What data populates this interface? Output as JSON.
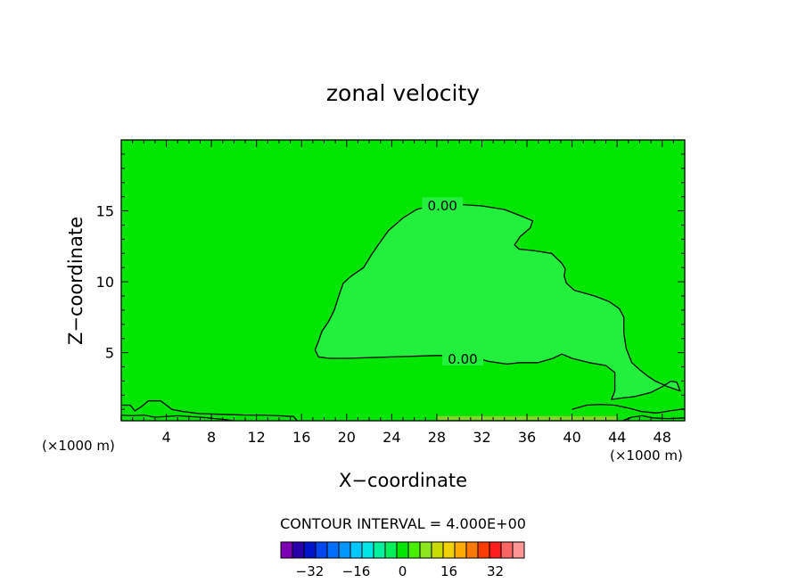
{
  "chart_data": {
    "type": "heatmap",
    "title": "zonal velocity",
    "xlabel": "X−coordinate",
    "ylabel": "Z−coordinate",
    "x_unit_left": "(×1000 m)",
    "x_unit_right": "(×1000 m)",
    "xlim": [
      0,
      50
    ],
    "ylim": [
      0.2,
      20
    ],
    "x_ticks": [
      4,
      8,
      12,
      16,
      20,
      24,
      28,
      32,
      36,
      40,
      44,
      48
    ],
    "y_ticks": [
      5,
      10,
      15
    ],
    "background_color": "#00e600",
    "region_color": "#22f03c",
    "contours": [
      {
        "level": "0.00",
        "label_positions": [
          [
            28.5,
            15.4
          ],
          [
            30.3,
            4.6
          ]
        ],
        "points": [
          [
            27.6,
            15.4
          ],
          [
            30,
            15.45
          ],
          [
            32,
            15.35
          ],
          [
            34,
            15.1
          ],
          [
            35.6,
            14.6
          ],
          [
            36.5,
            14.3
          ],
          [
            36.3,
            13.8
          ],
          [
            35.4,
            13.2
          ],
          [
            34.9,
            12.6
          ],
          [
            35.3,
            12.3
          ],
          [
            36.6,
            12.2
          ],
          [
            38.2,
            12.0
          ],
          [
            39.1,
            11.3
          ],
          [
            39.4,
            10.9
          ],
          [
            39.3,
            10.4
          ],
          [
            39.5,
            9.9
          ],
          [
            40.2,
            9.4
          ],
          [
            42,
            9.0
          ],
          [
            43.3,
            8.6
          ],
          [
            44.2,
            8.1
          ],
          [
            44.6,
            7.5
          ],
          [
            44.6,
            6.4
          ],
          [
            44.8,
            5.3
          ],
          [
            45.3,
            4.3
          ],
          [
            46,
            3.8
          ],
          [
            46.8,
            3.3
          ],
          [
            47.4,
            3.0
          ],
          [
            48.5,
            2.6
          ],
          [
            49.6,
            2.3
          ],
          [
            49.3,
            2.9
          ],
          [
            48.8,
            3.0
          ],
          [
            48,
            2.6
          ],
          [
            47,
            2.2
          ],
          [
            45.5,
            1.9
          ],
          [
            44.4,
            1.8
          ],
          [
            43.5,
            1.7
          ],
          [
            43.8,
            2.3
          ],
          [
            43.8,
            3.6
          ],
          [
            43,
            4.1
          ],
          [
            41.5,
            4.3
          ],
          [
            40,
            4.6
          ],
          [
            39.1,
            4.9
          ],
          [
            38.3,
            4.6
          ],
          [
            37,
            4.3
          ],
          [
            35.4,
            4.3
          ],
          [
            34.2,
            4.2
          ],
          [
            32.5,
            4.4
          ],
          [
            31,
            4.8
          ],
          [
            28,
            4.8
          ],
          [
            24,
            4.7
          ],
          [
            20,
            4.6
          ],
          [
            18.5,
            4.6
          ],
          [
            17.5,
            4.7
          ],
          [
            17.2,
            5.2
          ],
          [
            17.5,
            5.8
          ],
          [
            17.8,
            6.5
          ],
          [
            18.4,
            7.2
          ],
          [
            18.9,
            8.0
          ],
          [
            19.3,
            9.0
          ],
          [
            19.7,
            9.9
          ],
          [
            20.4,
            10.4
          ],
          [
            21.5,
            11.0
          ],
          [
            22.2,
            11.9
          ],
          [
            22.8,
            12.6
          ],
          [
            23.7,
            13.6
          ],
          [
            25,
            14.5
          ],
          [
            26.2,
            15.1
          ],
          [
            27.6,
            15.4
          ]
        ]
      },
      {
        "level": "",
        "points": [
          [
            0,
            1.3
          ],
          [
            0.8,
            1.3
          ],
          [
            1.2,
            0.9
          ],
          [
            1.8,
            1.2
          ],
          [
            2.4,
            1.6
          ],
          [
            3.5,
            1.6
          ],
          [
            4.5,
            1.0
          ],
          [
            5.5,
            0.85
          ],
          [
            7,
            0.7
          ],
          [
            9,
            0.65
          ],
          [
            11,
            0.6
          ],
          [
            12.5,
            0.6
          ],
          [
            14,
            0.55
          ],
          [
            15.3,
            0.5
          ],
          [
            15.6,
            0.2
          ]
        ]
      },
      {
        "level": "",
        "points": [
          [
            0,
            0.2
          ],
          [
            0,
            0.6
          ],
          [
            1,
            0.55
          ],
          [
            2,
            0.6
          ],
          [
            3,
            0.45
          ],
          [
            5,
            0.55
          ],
          [
            7,
            0.45
          ],
          [
            9,
            0.3
          ],
          [
            10,
            0.2
          ]
        ]
      },
      {
        "level": "",
        "points": [
          [
            40,
            1.0
          ],
          [
            41.3,
            1.3
          ],
          [
            42.5,
            1.35
          ],
          [
            43.8,
            1.3
          ],
          [
            45,
            1.1
          ],
          [
            46.2,
            0.85
          ],
          [
            47.5,
            0.75
          ],
          [
            48.7,
            0.9
          ],
          [
            50,
            1.05
          ]
        ]
      },
      {
        "level": "",
        "points": [
          [
            44.5,
            0.2
          ],
          [
            45.3,
            0.45
          ],
          [
            46.2,
            0.55
          ],
          [
            47.2,
            0.4
          ],
          [
            48.5,
            0.35
          ],
          [
            50,
            0.4
          ]
        ]
      }
    ],
    "bottom_band": {
      "x_start": 28,
      "x_end": 44,
      "color": "#8ad22a"
    },
    "colorbar": {
      "interval_label": "CONTOUR INTERVAL = 4.000E+00",
      "colors": [
        "#7e00b4",
        "#2800aa",
        "#0014cc",
        "#0046f0",
        "#006eff",
        "#0096ff",
        "#00c8ff",
        "#00e6e6",
        "#00f09b",
        "#00f05a",
        "#00e600",
        "#46f000",
        "#8ce61e",
        "#c8dc00",
        "#f0d200",
        "#ffaa00",
        "#ff7800",
        "#ff3c00",
        "#ff1e1e",
        "#ff6464",
        "#ff9696"
      ],
      "tick_labels": [
        "−32",
        "−16",
        "0",
        "16",
        "32"
      ],
      "tick_values": [
        -32,
        -16,
        0,
        16,
        32
      ],
      "min": -42,
      "max": 42
    }
  }
}
